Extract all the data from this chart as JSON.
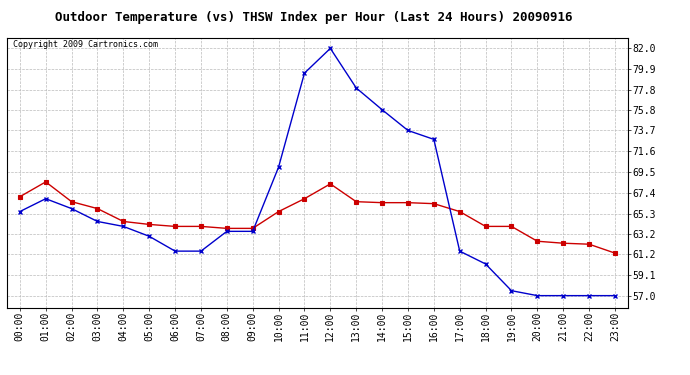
{
  "title": "Outdoor Temperature (vs) THSW Index per Hour (Last 24 Hours) 20090916",
  "copyright_text": "Copyright 2009 Cartronics.com",
  "x_labels": [
    "00:00",
    "01:00",
    "02:00",
    "03:00",
    "04:00",
    "05:00",
    "06:00",
    "07:00",
    "08:00",
    "09:00",
    "10:00",
    "11:00",
    "12:00",
    "13:00",
    "14:00",
    "15:00",
    "16:00",
    "17:00",
    "18:00",
    "19:00",
    "20:00",
    "21:00",
    "22:00",
    "23:00"
  ],
  "red_data": [
    67.0,
    68.5,
    66.5,
    65.8,
    64.5,
    64.2,
    64.0,
    64.0,
    63.8,
    63.8,
    65.5,
    66.8,
    68.3,
    66.5,
    66.4,
    66.4,
    66.3,
    65.5,
    64.0,
    64.0,
    62.5,
    62.3,
    62.2,
    61.3
  ],
  "blue_data": [
    65.5,
    66.8,
    65.8,
    64.5,
    64.0,
    63.0,
    61.5,
    61.5,
    63.5,
    63.5,
    70.0,
    79.5,
    82.0,
    78.0,
    75.8,
    73.7,
    72.8,
    61.5,
    60.2,
    57.5,
    57.0,
    57.0,
    57.0,
    57.0
  ],
  "red_color": "#cc0000",
  "blue_color": "#0000cc",
  "bg_color": "#ffffff",
  "grid_color": "#bbbbbb",
  "ylim_min": 55.8,
  "ylim_max": 83.1,
  "yticks": [
    57.0,
    59.1,
    61.2,
    63.2,
    65.3,
    67.4,
    69.5,
    71.6,
    73.7,
    75.8,
    77.8,
    79.9,
    82.0
  ],
  "title_fontsize": 9,
  "copyright_fontsize": 6,
  "tick_fontsize": 7
}
